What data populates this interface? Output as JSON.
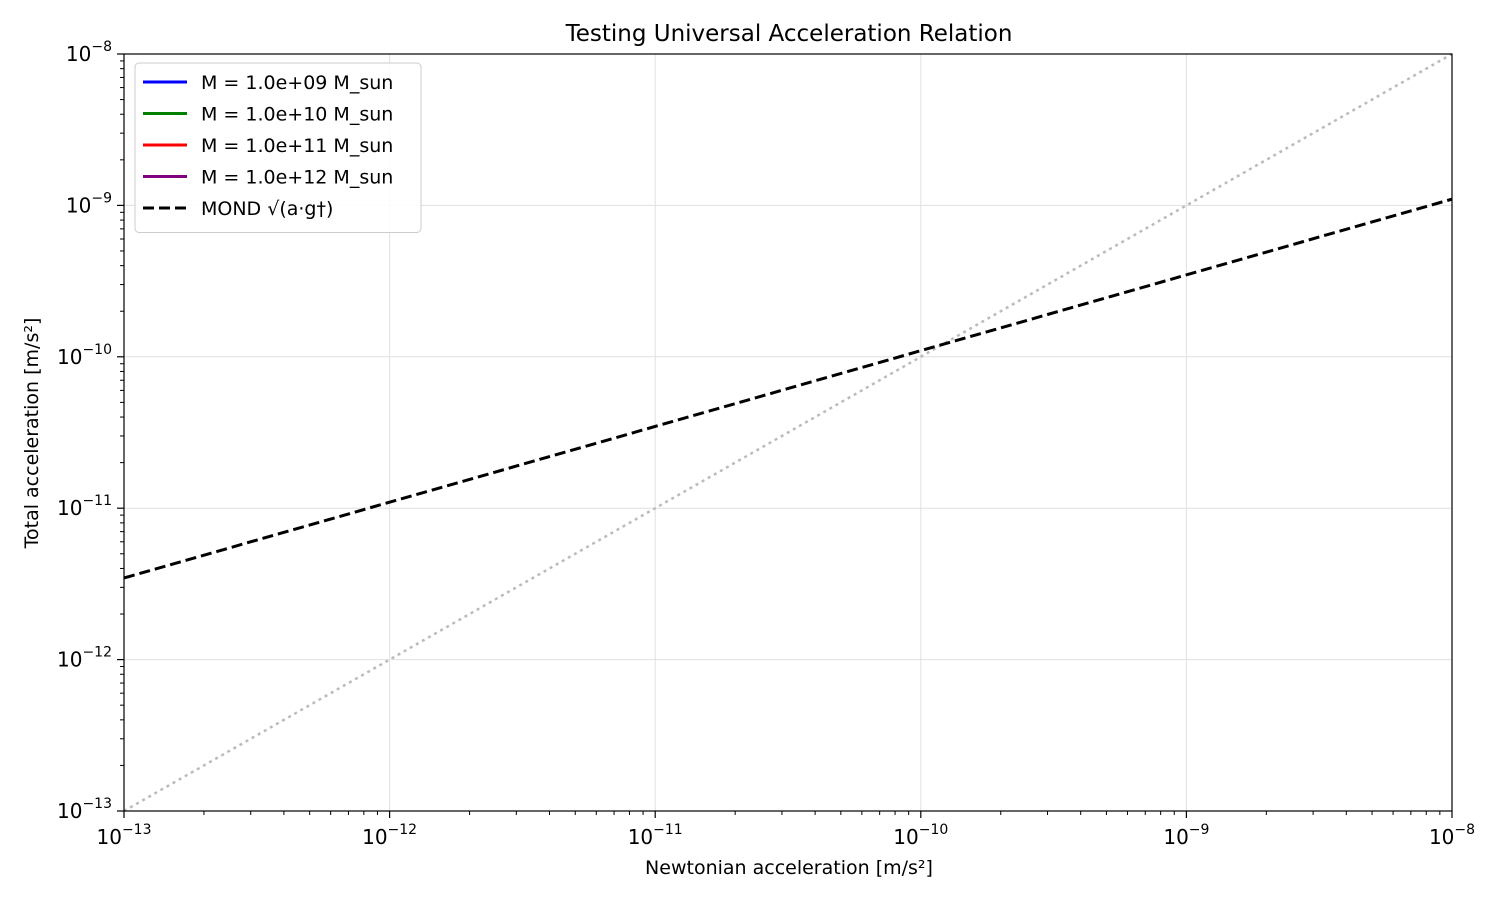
{
  "chart_data": {
    "type": "line",
    "title": "Testing Universal Acceleration Relation",
    "xlabel": "Newtonian acceleration [m/s²]",
    "ylabel": "Total acceleration [m/s²]",
    "x_scale": "log",
    "y_scale": "log",
    "xlim": [
      1e-13,
      1e-08
    ],
    "ylim": [
      1e-13,
      1e-08
    ],
    "x_ticks": [
      {
        "value": 1e-13,
        "base": "10",
        "exp": "−13"
      },
      {
        "value": 1e-12,
        "base": "10",
        "exp": "−12"
      },
      {
        "value": 1e-11,
        "base": "10",
        "exp": "−11"
      },
      {
        "value": 1e-10,
        "base": "10",
        "exp": "−10"
      },
      {
        "value": 1e-09,
        "base": "10",
        "exp": "−9"
      },
      {
        "value": 1e-08,
        "base": "10",
        "exp": "−8"
      }
    ],
    "y_ticks": [
      {
        "value": 1e-13,
        "base": "10",
        "exp": "−13"
      },
      {
        "value": 1e-12,
        "base": "10",
        "exp": "−12"
      },
      {
        "value": 1e-11,
        "base": "10",
        "exp": "−11"
      },
      {
        "value": 1e-10,
        "base": "10",
        "exp": "−10"
      },
      {
        "value": 1e-09,
        "base": "10",
        "exp": "−9"
      },
      {
        "value": 1e-08,
        "base": "10",
        "exp": "−8"
      }
    ],
    "grid": true,
    "legend_position": "top-left",
    "series": [
      {
        "name": "M = 1.0e+09 M_sun",
        "color": "#0000ff",
        "style": "solid",
        "x": [],
        "y": []
      },
      {
        "name": "M = 1.0e+10 M_sun",
        "color": "#008000",
        "style": "solid",
        "x": [],
        "y": []
      },
      {
        "name": "M = 1.0e+11 M_sun",
        "color": "#ff0000",
        "style": "solid",
        "x": [],
        "y": []
      },
      {
        "name": "M = 1.0e+12 M_sun",
        "color": "#800080",
        "style": "solid",
        "x": [],
        "y": []
      },
      {
        "name": "MOND √(a·g†)",
        "color": "#000000",
        "style": "dashed",
        "x": [
          1e-13,
          1e-08
        ],
        "y": [
          3.46e-12,
          1.1e-09
        ]
      }
    ],
    "reference_line": {
      "color": "#bbbbbb",
      "style": "dotted",
      "x": [
        1e-13,
        1e-08
      ],
      "y": [
        1e-13,
        1e-08
      ]
    }
  }
}
